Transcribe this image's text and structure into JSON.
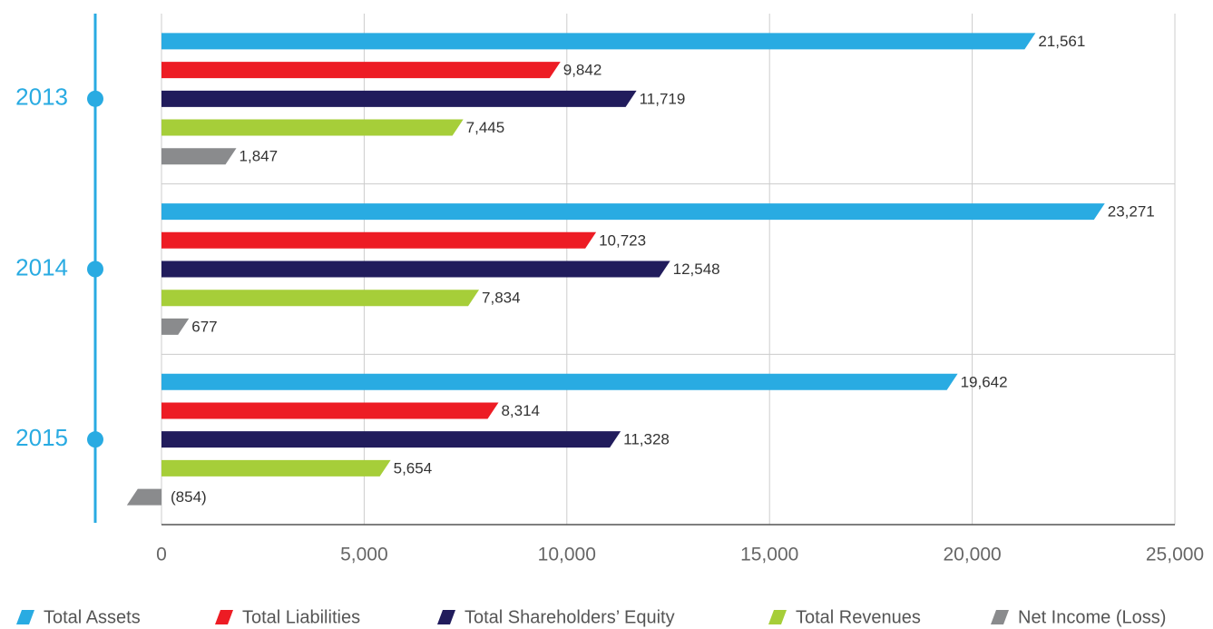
{
  "chart_data": {
    "type": "bar",
    "orientation": "horizontal",
    "categories": [
      "2013",
      "2014",
      "2015"
    ],
    "series": [
      {
        "name": "Total Assets",
        "color": "#29abe2",
        "values": [
          21561,
          23271,
          19642
        ],
        "value_labels": [
          "21,561",
          "23,271",
          "19,642"
        ]
      },
      {
        "name": "Total Liabilities",
        "color": "#ed1c24",
        "values": [
          9842,
          10723,
          8314
        ],
        "value_labels": [
          "9,842",
          "10,723",
          "8,314"
        ]
      },
      {
        "name": "Total Shareholders’ Equity",
        "color": "#211c5c",
        "values": [
          11719,
          12548,
          11328
        ],
        "value_labels": [
          "11,719",
          "12,548",
          "11,328"
        ]
      },
      {
        "name": "Total Revenues",
        "color": "#a6ce39",
        "values": [
          7445,
          7834,
          5654
        ],
        "value_labels": [
          "7,445",
          "7,834",
          "5,654"
        ]
      },
      {
        "name": "Net Income (Loss)",
        "color": "#8a8b8d",
        "values": [
          1847,
          677,
          -854
        ],
        "value_labels": [
          "1,847",
          "677",
          "(854)"
        ]
      }
    ],
    "xlim": [
      0,
      25000
    ],
    "xticks": [
      0,
      {
        "value": 5000,
        "label": "5,000"
      },
      {
        "value": 10000,
        "label": "10,000"
      },
      {
        "value": 15000,
        "label": "15,000"
      },
      {
        "value": 20000,
        "label": "20,000"
      },
      {
        "value": 25000,
        "label": "25,000"
      }
    ],
    "grid": true,
    "legend": "bottom"
  }
}
